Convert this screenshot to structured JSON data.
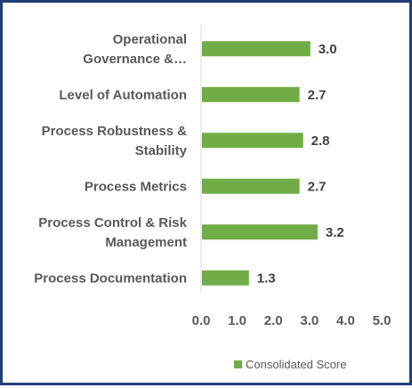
{
  "chart_data": {
    "type": "bar",
    "orientation": "horizontal",
    "title": "",
    "xlabel": "",
    "ylabel": "",
    "categories": [
      [
        "Operational",
        "Governance &…"
      ],
      [
        "Level of Automation"
      ],
      [
        "Process Robustness &",
        "Stability"
      ],
      [
        "Process Metrics"
      ],
      [
        "Process Control & Risk",
        "Management"
      ],
      [
        "Process Documentation"
      ]
    ],
    "series": [
      {
        "name": "Consolidated Score",
        "color": "#70ad47",
        "values": [
          3.0,
          2.7,
          2.8,
          2.7,
          3.2,
          1.3
        ],
        "labels": [
          "3.0",
          "2.7",
          "2.8",
          "2.7",
          "3.2",
          "1.3"
        ]
      }
    ],
    "xlim": [
      0,
      5
    ],
    "ticks": [
      "0.0",
      "1.0",
      "2.0",
      "3.0",
      "4.0",
      "5.0"
    ],
    "grid": false,
    "legend_position": "bottom-right"
  }
}
